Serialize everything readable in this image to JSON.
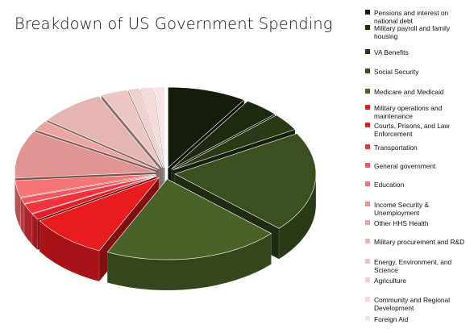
{
  "chart_data": {
    "type": "pie",
    "title": "Breakdown of US Government Spending",
    "legend_position": "right",
    "three_d": true,
    "exploded": true,
    "series": [
      {
        "name": "Pensions and interest on national debt",
        "value": 9.0,
        "color": "#141c0b"
      },
      {
        "name": "Military payroll and family housing",
        "value": 4.0,
        "color": "#1e2a10"
      },
      {
        "name": "VA Benefits",
        "value": 3.5,
        "color": "#2b3a16"
      },
      {
        "name": "Social Security",
        "value": 20.0,
        "color": "#3b4f1f"
      },
      {
        "name": "Medicare and Medicaid",
        "value": 20.0,
        "color": "#4a6127"
      },
      {
        "name": "Military operations and maintenance",
        "value": 9.0,
        "color": "#e81b1e"
      },
      {
        "name": "Courts, Prisons, and Law Enforcement",
        "value": 1.2,
        "color": "#e02027"
      },
      {
        "name": "Transportation",
        "value": 2.0,
        "color": "#f2323c"
      },
      {
        "name": "General government",
        "value": 1.2,
        "color": "#f5555c"
      },
      {
        "name": "Education",
        "value": 3.3,
        "color": "#f57575"
      },
      {
        "name": "Income Security & Unemployment",
        "value": 9.5,
        "color": "#e09592"
      },
      {
        "name": "Other HHS Health",
        "value": 2.0,
        "color": "#eaa5a2"
      },
      {
        "name": "Military procurement and R&D",
        "value": 7.5,
        "color": "#e5b5b3"
      },
      {
        "name": "Energy, Environment, and Science",
        "value": 3.0,
        "color": "#ecc6c4"
      },
      {
        "name": "Agriculture",
        "value": 1.3,
        "color": "#f0d0cc"
      },
      {
        "name": "Community and Regional Development",
        "value": 1.5,
        "color": "#f4dad8"
      },
      {
        "name": "Foreign Aid",
        "value": 1.2,
        "color": "#f8e4e2"
      }
    ]
  }
}
